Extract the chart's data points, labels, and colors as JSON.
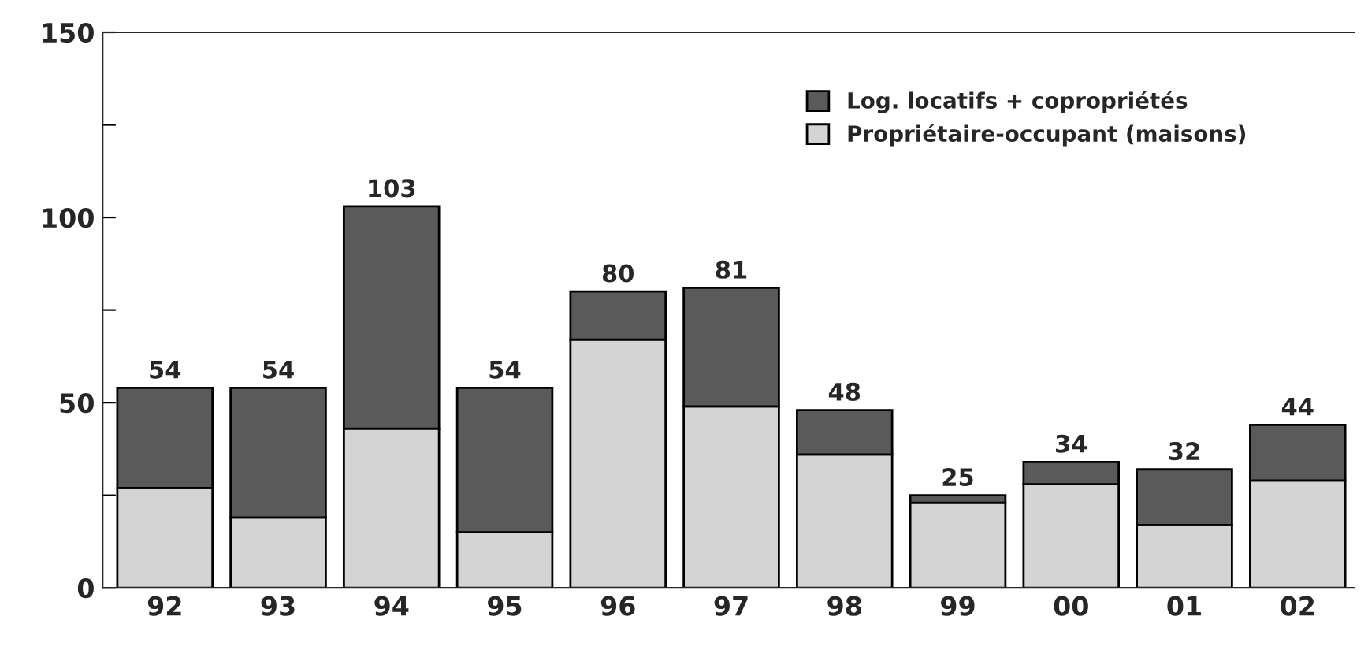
{
  "chart_data": {
    "type": "bar",
    "stacked": true,
    "categories": [
      "92",
      "93",
      "94",
      "95",
      "96",
      "97",
      "98",
      "99",
      "00",
      "01",
      "02"
    ],
    "series": [
      {
        "name": "Propriétaire-occupant (maisons)",
        "color": "#d4d4d4",
        "values": [
          27,
          19,
          43,
          15,
          67,
          49,
          36,
          23,
          28,
          17,
          29
        ]
      },
      {
        "name": "Log. locatifs + copropriétés",
        "color": "#5a5a5a",
        "values": [
          27,
          35,
          60,
          39,
          13,
          32,
          12,
          2,
          6,
          15,
          15
        ]
      }
    ],
    "totals": [
      "54",
      "54",
      "103",
      "54",
      "80",
      "81",
      "48",
      "25",
      "34",
      "32",
      "44"
    ],
    "ylim": [
      0,
      150
    ],
    "yticks": [
      0,
      {
        "value": 25,
        "label": null
      },
      50,
      {
        "value": 75,
        "label": null
      },
      100,
      {
        "value": 125,
        "label": null
      },
      150
    ],
    "legend": "top right",
    "grid": false
  }
}
